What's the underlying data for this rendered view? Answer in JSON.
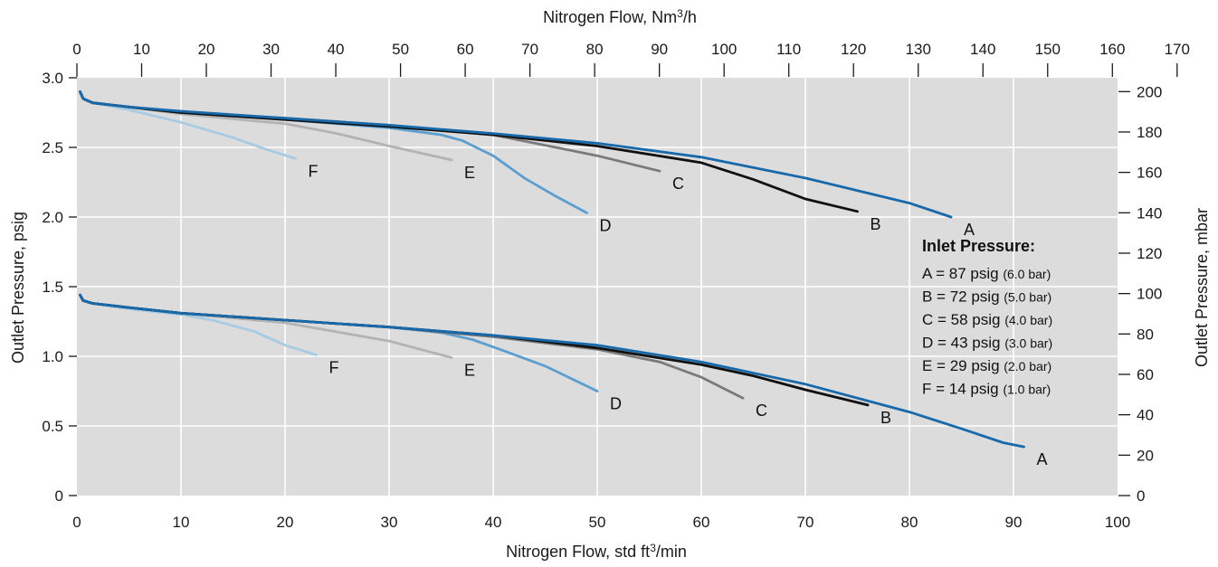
{
  "chart_data": {
    "type": "line",
    "top_axis": {
      "label_main": "Nitrogen Flow, Nm",
      "label_sup": "3",
      "label_tail": "/h",
      "range": [
        0,
        170
      ],
      "ticks": [
        "0",
        "10",
        "20",
        "30",
        "40",
        "50",
        "60",
        "70",
        "80",
        "90",
        "100",
        "110",
        "120",
        "130",
        "140",
        "150",
        "160",
        "170"
      ]
    },
    "bottom_axis": {
      "label_main": "Nitrogen Flow, std ft",
      "label_sup": "3",
      "label_tail": "/min",
      "range": [
        0,
        100
      ],
      "ticks": [
        "0",
        "10",
        "20",
        "30",
        "40",
        "50",
        "60",
        "70",
        "80",
        "90",
        "100"
      ]
    },
    "left_axis": {
      "label": "Outlet Pressure, psig",
      "range": [
        0,
        3.0
      ],
      "ticks": [
        {
          "v": 0,
          "t": "0"
        },
        {
          "v": 0.5,
          "t": "0.5"
        },
        {
          "v": 1.0,
          "t": "1.0"
        },
        {
          "v": 1.5,
          "t": "1.5"
        },
        {
          "v": 2.0,
          "t": "2.0"
        },
        {
          "v": 2.5,
          "t": "2.5"
        },
        {
          "v": 3.0,
          "t": "3.0"
        }
      ]
    },
    "right_axis": {
      "label": "Outlet Pressure, mbar",
      "ticks": [
        "0",
        "20",
        "40",
        "60",
        "80",
        "100",
        "120",
        "140",
        "160",
        "180",
        "200"
      ]
    },
    "grid": true,
    "legend": {
      "title": "Inlet Pressure:",
      "placement": "right",
      "entries": [
        {
          "main": "A = 87 psig",
          "sub": "(6.0 bar)"
        },
        {
          "main": "B = 72 psig",
          "sub": "(5.0 bar)"
        },
        {
          "main": "C = 58 psig",
          "sub": "(4.0 bar)"
        },
        {
          "main": "D = 43 psig",
          "sub": "(3.0 bar)"
        },
        {
          "main": "E = 29 psig",
          "sub": "(2.0 bar)"
        },
        {
          "main": "F = 14 psig",
          "sub": "(1.0 bar)"
        }
      ]
    },
    "series": [
      {
        "name": "A",
        "group": "upper",
        "color": "#1769aa",
        "points": [
          [
            0.3,
            2.9
          ],
          [
            0.6,
            2.85
          ],
          [
            1.5,
            2.82
          ],
          [
            5,
            2.79
          ],
          [
            10,
            2.76
          ],
          [
            20,
            2.71
          ],
          [
            30,
            2.66
          ],
          [
            40,
            2.6
          ],
          [
            50,
            2.53
          ],
          [
            60,
            2.43
          ],
          [
            70,
            2.28
          ],
          [
            80,
            2.1
          ],
          [
            84,
            2.0
          ]
        ]
      },
      {
        "name": "B",
        "group": "upper",
        "color": "#111111",
        "points": [
          [
            0.3,
            2.9
          ],
          [
            0.6,
            2.85
          ],
          [
            1.5,
            2.82
          ],
          [
            5,
            2.79
          ],
          [
            10,
            2.75
          ],
          [
            20,
            2.7
          ],
          [
            30,
            2.65
          ],
          [
            40,
            2.59
          ],
          [
            50,
            2.51
          ],
          [
            60,
            2.39
          ],
          [
            65,
            2.27
          ],
          [
            70,
            2.13
          ],
          [
            75,
            2.04
          ]
        ]
      },
      {
        "name": "C",
        "group": "upper",
        "color": "#7a7a7a",
        "points": [
          [
            0.3,
            2.9
          ],
          [
            0.6,
            2.85
          ],
          [
            1.5,
            2.82
          ],
          [
            5,
            2.79
          ],
          [
            10,
            2.75
          ],
          [
            20,
            2.71
          ],
          [
            30,
            2.66
          ],
          [
            40,
            2.59
          ],
          [
            50,
            2.44
          ],
          [
            56,
            2.33
          ]
        ]
      },
      {
        "name": "D",
        "group": "upper",
        "color": "#5b9fd0",
        "points": [
          [
            0.3,
            2.9
          ],
          [
            0.6,
            2.85
          ],
          [
            1.5,
            2.82
          ],
          [
            5,
            2.79
          ],
          [
            10,
            2.75
          ],
          [
            20,
            2.7
          ],
          [
            30,
            2.64
          ],
          [
            35,
            2.59
          ],
          [
            37,
            2.55
          ],
          [
            40,
            2.44
          ],
          [
            43,
            2.28
          ],
          [
            46,
            2.15
          ],
          [
            49,
            2.03
          ]
        ]
      },
      {
        "name": "E",
        "group": "upper",
        "color": "#b3b3b3",
        "points": [
          [
            0.3,
            2.9
          ],
          [
            0.6,
            2.85
          ],
          [
            1.5,
            2.82
          ],
          [
            5,
            2.79
          ],
          [
            10,
            2.74
          ],
          [
            20,
            2.67
          ],
          [
            25,
            2.6
          ],
          [
            30,
            2.51
          ],
          [
            36,
            2.41
          ]
        ]
      },
      {
        "name": "F",
        "group": "upper",
        "color": "#a7cbe3",
        "points": [
          [
            0.3,
            2.9
          ],
          [
            0.6,
            2.85
          ],
          [
            1.5,
            2.82
          ],
          [
            5,
            2.77
          ],
          [
            10,
            2.68
          ],
          [
            15,
            2.57
          ],
          [
            18,
            2.49
          ],
          [
            21,
            2.42
          ]
        ]
      },
      {
        "name": "A",
        "group": "lower",
        "color": "#1769aa",
        "points": [
          [
            0.3,
            1.44
          ],
          [
            0.6,
            1.4
          ],
          [
            1.5,
            1.38
          ],
          [
            5,
            1.35
          ],
          [
            10,
            1.31
          ],
          [
            20,
            1.26
          ],
          [
            30,
            1.21
          ],
          [
            40,
            1.15
          ],
          [
            50,
            1.08
          ],
          [
            60,
            0.96
          ],
          [
            70,
            0.8
          ],
          [
            80,
            0.6
          ],
          [
            85,
            0.48
          ],
          [
            89,
            0.38
          ],
          [
            91,
            0.35
          ]
        ]
      },
      {
        "name": "B",
        "group": "lower",
        "color": "#111111",
        "points": [
          [
            0.3,
            1.44
          ],
          [
            0.6,
            1.4
          ],
          [
            1.5,
            1.38
          ],
          [
            5,
            1.35
          ],
          [
            10,
            1.31
          ],
          [
            20,
            1.26
          ],
          [
            30,
            1.21
          ],
          [
            40,
            1.15
          ],
          [
            50,
            1.06
          ],
          [
            60,
            0.94
          ],
          [
            65,
            0.86
          ],
          [
            70,
            0.76
          ],
          [
            76,
            0.65
          ]
        ]
      },
      {
        "name": "C",
        "group": "lower",
        "color": "#7a7a7a",
        "points": [
          [
            0.3,
            1.44
          ],
          [
            0.6,
            1.4
          ],
          [
            1.5,
            1.38
          ],
          [
            5,
            1.35
          ],
          [
            10,
            1.31
          ],
          [
            20,
            1.26
          ],
          [
            30,
            1.21
          ],
          [
            40,
            1.14
          ],
          [
            50,
            1.05
          ],
          [
            56,
            0.96
          ],
          [
            60,
            0.85
          ],
          [
            64,
            0.7
          ]
        ]
      },
      {
        "name": "D",
        "group": "lower",
        "color": "#5b9fd0",
        "points": [
          [
            0.3,
            1.44
          ],
          [
            0.6,
            1.4
          ],
          [
            1.5,
            1.38
          ],
          [
            5,
            1.35
          ],
          [
            10,
            1.31
          ],
          [
            20,
            1.26
          ],
          [
            30,
            1.21
          ],
          [
            35,
            1.17
          ],
          [
            38,
            1.12
          ],
          [
            41,
            1.04
          ],
          [
            45,
            0.93
          ],
          [
            50,
            0.75
          ]
        ]
      },
      {
        "name": "E",
        "group": "lower",
        "color": "#b3b3b3",
        "points": [
          [
            0.3,
            1.44
          ],
          [
            0.6,
            1.4
          ],
          [
            1.5,
            1.38
          ],
          [
            5,
            1.35
          ],
          [
            10,
            1.31
          ],
          [
            20,
            1.24
          ],
          [
            30,
            1.11
          ],
          [
            36,
            0.99
          ]
        ]
      },
      {
        "name": "F",
        "group": "lower",
        "color": "#a7cbe3",
        "points": [
          [
            0.3,
            1.44
          ],
          [
            0.6,
            1.4
          ],
          [
            1.5,
            1.38
          ],
          [
            5,
            1.34
          ],
          [
            10,
            1.3
          ],
          [
            13,
            1.26
          ],
          [
            17,
            1.18
          ],
          [
            20,
            1.08
          ],
          [
            23,
            1.01
          ]
        ]
      }
    ]
  }
}
